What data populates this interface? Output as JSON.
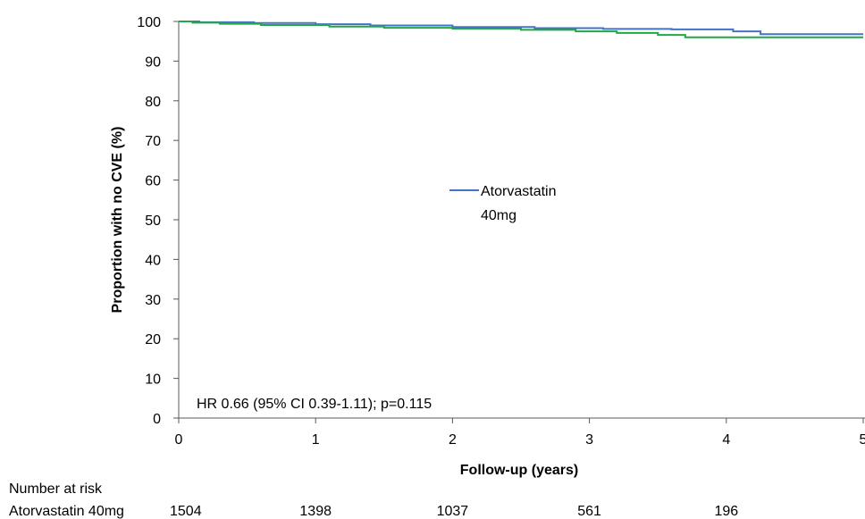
{
  "chart_data": {
    "type": "line",
    "title": "",
    "xlabel": "Follow-up (years)",
    "ylabel": "Proportion with no CVE (%)",
    "xlim": [
      0,
      5
    ],
    "ylim": [
      0,
      100
    ],
    "x_ticks": [
      "0",
      "1",
      "2",
      "3",
      "4",
      "5"
    ],
    "y_ticks": [
      "0",
      "10",
      "20",
      "30",
      "40",
      "50",
      "60",
      "70",
      "80",
      "90",
      "100"
    ],
    "grid": false,
    "legend_position": "center",
    "series": [
      {
        "name": "Atorvastatin 40mg",
        "legend_lines": [
          "Atorvastatin",
          "40mg"
        ],
        "color": "#4472c4",
        "step": true,
        "x": [
          0,
          0.15,
          0.55,
          1.0,
          1.4,
          2.0,
          2.6,
          3.1,
          3.6,
          4.05,
          4.2,
          4.25,
          5.0
        ],
        "y": [
          100,
          99.8,
          99.6,
          99.3,
          99.0,
          98.6,
          98.3,
          98.1,
          98.0,
          97.5,
          97.5,
          96.8,
          96.8
        ]
      },
      {
        "name": "",
        "color": "#22a745",
        "step": true,
        "x": [
          0,
          0.1,
          0.3,
          0.6,
          1.1,
          1.5,
          2.0,
          2.5,
          2.9,
          3.2,
          3.5,
          3.7,
          5.0
        ],
        "y": [
          100,
          99.7,
          99.4,
          99.1,
          98.7,
          98.4,
          98.2,
          97.9,
          97.5,
          97.1,
          96.6,
          96.0,
          96.0
        ]
      }
    ],
    "annotation": "HR 0.66 (95% CI 0.39-1.11); p=0.115",
    "risk_table": {
      "title": "Number at risk",
      "rows": [
        {
          "label": "Atorvastatin 40mg",
          "values": [
            "1504",
            "1398",
            "1037",
            "561",
            "196"
          ]
        }
      ]
    }
  }
}
